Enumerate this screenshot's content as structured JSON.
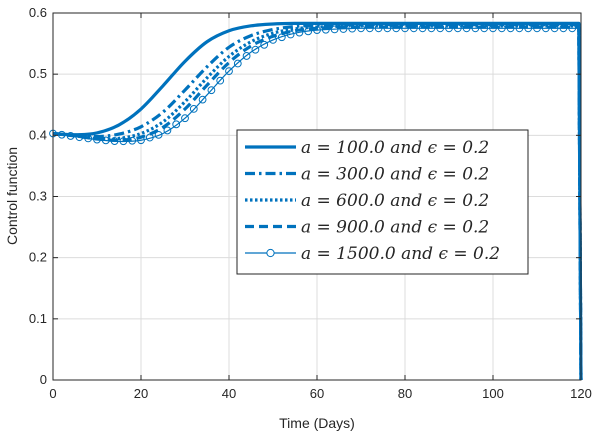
{
  "chart_data": {
    "type": "line",
    "xlabel": "Time (Days)",
    "ylabel": "Control function",
    "xlim": [
      0,
      120
    ],
    "ylim": [
      0,
      0.6
    ],
    "xticks": [
      0,
      20,
      40,
      60,
      80,
      100,
      120
    ],
    "yticks": [
      0,
      0.1,
      0.2,
      0.3,
      0.4,
      0.5,
      0.6
    ],
    "xtick_labels": [
      "0",
      "20",
      "40",
      "60",
      "80",
      "100",
      "120"
    ],
    "ytick_labels": [
      "0",
      "0.1",
      "0.2",
      "0.3",
      "0.4",
      "0.5",
      "0.6"
    ],
    "grid": true,
    "legend_position": "center-right",
    "line_color": "#0072BD",
    "x": [
      0,
      5,
      10,
      15,
      20,
      25,
      30,
      35,
      40,
      45,
      50,
      55,
      60,
      70,
      80,
      90,
      100,
      110,
      119.5,
      120
    ],
    "series": [
      {
        "name": "a = 100.0 and ϵ = 0.2",
        "style": "solid",
        "values": [
          0.403,
          0.401,
          0.404,
          0.417,
          0.443,
          0.481,
          0.521,
          0.553,
          0.571,
          0.579,
          0.582,
          0.583,
          0.583,
          0.583,
          0.583,
          0.583,
          0.583,
          0.583,
          0.583,
          0.0
        ]
      },
      {
        "name": "a = 300.0 and ϵ = 0.2",
        "style": "dash-dot",
        "values": [
          0.403,
          0.4,
          0.398,
          0.402,
          0.414,
          0.438,
          0.474,
          0.512,
          0.544,
          0.563,
          0.573,
          0.578,
          0.58,
          0.581,
          0.581,
          0.581,
          0.581,
          0.581,
          0.581,
          0.0
        ]
      },
      {
        "name": "a = 600.0 and ϵ = 0.2",
        "style": "dotted",
        "values": [
          0.403,
          0.399,
          0.395,
          0.395,
          0.403,
          0.422,
          0.455,
          0.494,
          0.529,
          0.553,
          0.567,
          0.574,
          0.577,
          0.579,
          0.579,
          0.579,
          0.579,
          0.579,
          0.579,
          0.0
        ]
      },
      {
        "name": "a = 900.0 and ϵ = 0.2",
        "style": "dashed",
        "values": [
          0.403,
          0.399,
          0.394,
          0.392,
          0.397,
          0.413,
          0.443,
          0.482,
          0.519,
          0.546,
          0.562,
          0.571,
          0.575,
          0.577,
          0.577,
          0.577,
          0.577,
          0.577,
          0.577,
          0.0
        ]
      },
      {
        "name": "a = 1500.0 and ϵ = 0.2",
        "style": "circle-markers",
        "values": [
          0.403,
          0.398,
          0.393,
          0.39,
          0.392,
          0.403,
          0.428,
          0.466,
          0.505,
          0.536,
          0.556,
          0.567,
          0.572,
          0.575,
          0.575,
          0.575,
          0.575,
          0.575,
          0.575,
          0.0
        ]
      }
    ]
  }
}
